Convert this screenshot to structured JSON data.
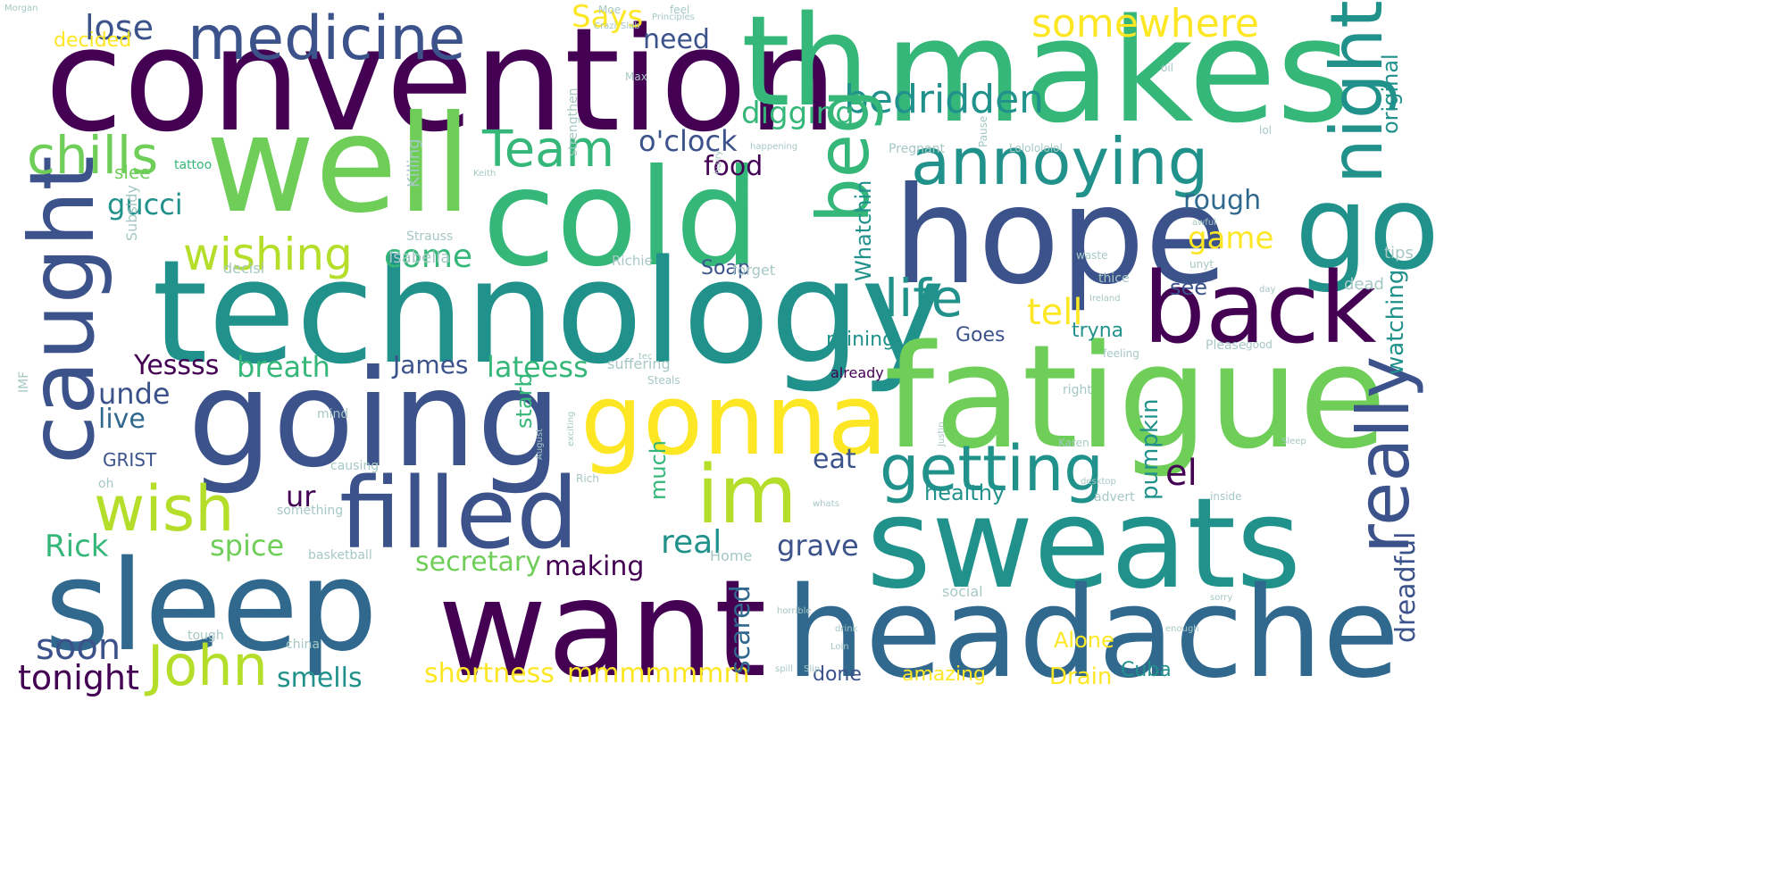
{
  "palette": {
    "purple": "#440154",
    "indigo": "#3b528b",
    "blue": "#31688e",
    "teal": "#21918c",
    "green": "#35b779",
    "lime": "#6ece58",
    "yellowgreen": "#b5de2b",
    "yellow": "#fde725",
    "light": "#a6c8c4"
  },
  "words": [
    {
      "text": "convention",
      "color": "purple"
    },
    {
      "text": "makes",
      "color": "green"
    },
    {
      "text": "th",
      "color": "green"
    },
    {
      "text": "medicine",
      "color": "indigo"
    },
    {
      "text": "lose",
      "color": "indigo"
    },
    {
      "text": "well",
      "color": "lime"
    },
    {
      "text": "cold",
      "color": "green"
    },
    {
      "text": "hope",
      "color": "indigo"
    },
    {
      "text": "go",
      "color": "teal"
    },
    {
      "text": "technology",
      "color": "teal"
    },
    {
      "text": "caught",
      "color": "indigo"
    },
    {
      "text": "chills",
      "color": "lime"
    },
    {
      "text": "back",
      "color": "purple"
    },
    {
      "text": "fatigue",
      "color": "lime"
    },
    {
      "text": "going",
      "color": "indigo"
    },
    {
      "text": "gonna",
      "color": "yellow"
    },
    {
      "text": "im",
      "color": "yellowgreen"
    },
    {
      "text": "sweats",
      "color": "teal"
    },
    {
      "text": "sleep",
      "color": "blue"
    },
    {
      "text": "want",
      "color": "purple"
    },
    {
      "text": "headache",
      "color": "blue"
    },
    {
      "text": "filled",
      "color": "indigo"
    },
    {
      "text": "wish",
      "color": "yellowgreen"
    },
    {
      "text": "John",
      "color": "yellowgreen"
    },
    {
      "text": "annoying",
      "color": "teal"
    },
    {
      "text": "getting",
      "color": "teal"
    },
    {
      "text": "life",
      "color": "teal"
    },
    {
      "text": "Team",
      "color": "green"
    },
    {
      "text": "wishing",
      "color": "yellowgreen"
    },
    {
      "text": "somewhere",
      "color": "yellow"
    },
    {
      "text": "bedridden",
      "color": "teal"
    },
    {
      "text": "night",
      "color": "teal"
    },
    {
      "text": "beg",
      "color": "green"
    },
    {
      "text": "really",
      "color": "indigo"
    },
    {
      "text": "soon",
      "color": "indigo"
    },
    {
      "text": "tonight",
      "color": "purple"
    },
    {
      "text": "Says",
      "color": "yellow"
    },
    {
      "text": "need",
      "color": "indigo"
    },
    {
      "text": "digging",
      "color": "green"
    },
    {
      "text": "o'clock",
      "color": "indigo"
    },
    {
      "text": "food",
      "color": "purple"
    },
    {
      "text": "gucci",
      "color": "teal"
    },
    {
      "text": "come",
      "color": "green"
    },
    {
      "text": "game",
      "color": "yellow"
    },
    {
      "text": "tell",
      "color": "yellow"
    },
    {
      "text": "rough",
      "color": "blue"
    },
    {
      "text": "see",
      "color": "indigo"
    },
    {
      "text": "original",
      "color": "teal"
    },
    {
      "text": "watching",
      "color": "teal"
    },
    {
      "text": "Yessss",
      "color": "purple"
    },
    {
      "text": "breath",
      "color": "green"
    },
    {
      "text": "James",
      "color": "indigo"
    },
    {
      "text": "lateess",
      "color": "green"
    },
    {
      "text": "unde",
      "color": "indigo"
    },
    {
      "text": "live",
      "color": "blue"
    },
    {
      "text": "GRIST",
      "color": "indigo"
    },
    {
      "text": "ur",
      "color": "purple"
    },
    {
      "text": "spice",
      "color": "lime"
    },
    {
      "text": "Rick",
      "color": "green"
    },
    {
      "text": "secretary",
      "color": "lime"
    },
    {
      "text": "making",
      "color": "purple"
    },
    {
      "text": "real",
      "color": "teal"
    },
    {
      "text": "grave",
      "color": "indigo"
    },
    {
      "text": "eat",
      "color": "indigo"
    },
    {
      "text": "healthy",
      "color": "teal"
    },
    {
      "text": "el",
      "color": "purple"
    },
    {
      "text": "pumpkin",
      "color": "teal"
    },
    {
      "text": "dreadful",
      "color": "indigo"
    },
    {
      "text": "smells",
      "color": "teal"
    },
    {
      "text": "shortness",
      "color": "yellow"
    },
    {
      "text": "mmmmmmm",
      "color": "yellow"
    },
    {
      "text": "scared",
      "color": "blue"
    },
    {
      "text": "done",
      "color": "indigo"
    },
    {
      "text": "amazing",
      "color": "yellow"
    },
    {
      "text": "Cuba",
      "color": "teal"
    },
    {
      "text": "Drain",
      "color": "yellow"
    },
    {
      "text": "Alone",
      "color": "yellow"
    },
    {
      "text": "Whatchin",
      "color": "teal"
    },
    {
      "text": "Goes",
      "color": "indigo"
    },
    {
      "text": "tryna",
      "color": "teal"
    },
    {
      "text": "ruining",
      "color": "teal"
    },
    {
      "text": "much",
      "color": "green"
    },
    {
      "text": "starb",
      "color": "green"
    },
    {
      "text": "decided",
      "color": "yellow"
    },
    {
      "text": "Soap",
      "color": "indigo"
    },
    {
      "text": "slee",
      "color": "lime"
    },
    {
      "text": "tattoo",
      "color": "green"
    },
    {
      "text": "Subsidy",
      "color": "light"
    },
    {
      "text": "Killing",
      "color": "light"
    },
    {
      "text": "Isabella",
      "color": "light"
    },
    {
      "text": "Richie",
      "color": "light"
    },
    {
      "text": "suffering",
      "color": "light"
    },
    {
      "text": "already",
      "color": "purple"
    },
    {
      "text": "Pregnant",
      "color": "light"
    },
    {
      "text": "Lololololol",
      "color": "light"
    },
    {
      "text": "basketball",
      "color": "light"
    },
    {
      "text": "causing",
      "color": "light"
    },
    {
      "text": "social",
      "color": "light"
    },
    {
      "text": "china",
      "color": "light"
    },
    {
      "text": "Home",
      "color": "light"
    },
    {
      "text": "tough",
      "color": "light"
    },
    {
      "text": "dead",
      "color": "light"
    },
    {
      "text": "tips",
      "color": "light"
    },
    {
      "text": "good",
      "color": "light"
    },
    {
      "text": "Please",
      "color": "light"
    },
    {
      "text": "inside",
      "color": "light"
    },
    {
      "text": "advert",
      "color": "light"
    },
    {
      "text": "decisi",
      "color": "light"
    },
    {
      "text": "something",
      "color": "light"
    },
    {
      "text": "oh",
      "color": "light"
    },
    {
      "text": "mind",
      "color": "light"
    },
    {
      "text": "IMF",
      "color": "light"
    },
    {
      "text": "Strauss",
      "color": "light"
    },
    {
      "text": "oil",
      "color": "light"
    },
    {
      "text": "lol",
      "color": "light"
    },
    {
      "text": "day",
      "color": "light"
    },
    {
      "text": "right",
      "color": "light"
    },
    {
      "text": "feel",
      "color": "light"
    },
    {
      "text": "Principles",
      "color": "light"
    },
    {
      "text": "Slab",
      "color": "light"
    },
    {
      "text": "Max",
      "color": "light"
    },
    {
      "text": "Crazi",
      "color": "light"
    },
    {
      "text": "Moe",
      "color": "light"
    },
    {
      "text": "tec",
      "color": "light"
    },
    {
      "text": "Keith",
      "color": "light"
    },
    {
      "text": "happening",
      "color": "light"
    },
    {
      "text": "hurry",
      "color": "light"
    },
    {
      "text": "forget",
      "color": "light"
    },
    {
      "text": "Pause",
      "color": "light"
    },
    {
      "text": "strengthen",
      "color": "light"
    },
    {
      "text": "Ireland",
      "color": "light"
    },
    {
      "text": "waste",
      "color": "light"
    },
    {
      "text": "Steals",
      "color": "light"
    },
    {
      "text": "horrible",
      "color": "light"
    },
    {
      "text": "whats",
      "color": "light"
    },
    {
      "text": "Slip",
      "color": "light"
    },
    {
      "text": "spill",
      "color": "light"
    },
    {
      "text": "Sleep",
      "color": "light"
    },
    {
      "text": "Karen",
      "color": "light"
    },
    {
      "text": "desktop",
      "color": "light"
    },
    {
      "text": "Rich",
      "color": "light"
    },
    {
      "text": "exciting",
      "color": "light"
    },
    {
      "text": "Morgan",
      "color": "light"
    },
    {
      "text": "unyt",
      "color": "light"
    },
    {
      "text": "feeling",
      "color": "light"
    },
    {
      "text": "thice",
      "color": "light"
    },
    {
      "text": "August",
      "color": "light"
    },
    {
      "text": "Justin",
      "color": "light"
    },
    {
      "text": "Loin",
      "color": "light"
    },
    {
      "text": "drink",
      "color": "light"
    },
    {
      "text": "awful",
      "color": "light"
    },
    {
      "text": "enough",
      "color": "light"
    },
    {
      "text": "sorry",
      "color": "light"
    }
  ]
}
